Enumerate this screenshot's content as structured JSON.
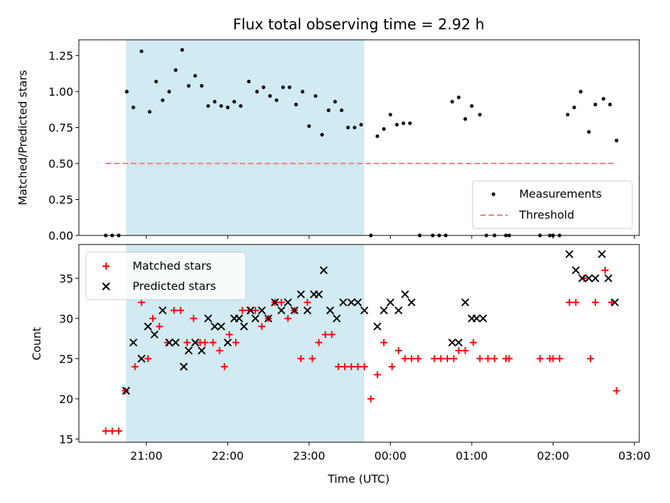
{
  "chart_data": [
    {
      "type": "scatter",
      "panel": "top",
      "title": "Flux total observing time = 2.92 h",
      "xlabel": "",
      "ylabel": "Matched/Predicted stars",
      "ylim": [
        0,
        1.36
      ],
      "yticks": [
        0.0,
        0.25,
        0.5,
        0.75,
        1.0,
        1.25
      ],
      "ytick_labels": [
        "0.00",
        "0.25",
        "0.50",
        "0.75",
        "1.00",
        "1.25"
      ],
      "x_range_hours": [
        20.17,
        27.06
      ],
      "shaded_span_hours": [
        20.75,
        23.68
      ],
      "shaded_color": "#add8e6",
      "legend_position": "lower right",
      "series": [
        {
          "name": "Measurements",
          "marker": "dot",
          "color": "#000000",
          "x": [
            20.5,
            20.58,
            20.66,
            20.76,
            20.84,
            20.94,
            21.04,
            21.12,
            21.2,
            21.28,
            21.36,
            21.44,
            21.52,
            21.6,
            21.68,
            21.76,
            21.84,
            21.92,
            22.0,
            22.08,
            22.16,
            22.26,
            22.36,
            22.44,
            22.52,
            22.6,
            22.68,
            22.76,
            22.84,
            22.92,
            23.0,
            23.08,
            23.16,
            23.24,
            23.32,
            23.4,
            23.48,
            23.56,
            23.64,
            23.76,
            23.84,
            23.92,
            24.0,
            24.08,
            24.16,
            24.24,
            24.36,
            24.52,
            24.6,
            24.68,
            24.76,
            24.84,
            24.92,
            25.0,
            25.1,
            25.18,
            25.28,
            25.42,
            25.46,
            25.84,
            25.96,
            26.0,
            26.08,
            26.18,
            26.26,
            26.34,
            26.44,
            26.52,
            26.62,
            26.7,
            26.78
          ],
          "y": [
            0.0,
            0.0,
            0.0,
            1.0,
            0.89,
            1.28,
            0.86,
            1.07,
            0.94,
            1.0,
            1.15,
            1.29,
            1.04,
            1.11,
            1.04,
            0.9,
            0.93,
            0.9,
            0.89,
            0.93,
            0.9,
            1.07,
            1.0,
            1.03,
            0.97,
            0.94,
            1.03,
            1.03,
            0.91,
            1.0,
            0.76,
            0.97,
            0.7,
            0.87,
            0.93,
            0.87,
            0.75,
            0.75,
            0.77,
            0.0,
            0.69,
            0.74,
            0.84,
            0.77,
            0.78,
            0.78,
            0.0,
            0.0,
            0.0,
            0.0,
            0.93,
            0.96,
            0.81,
            0.9,
            0.84,
            0.0,
            0.0,
            0.0,
            0.0,
            0.0,
            0.0,
            0.0,
            0.0,
            0.84,
            0.89,
            1.0,
            0.72,
            0.91,
            0.95,
            0.91,
            0.66
          ]
        },
        {
          "name": "Threshold",
          "marker": "dashed-line",
          "color": "#f08080",
          "x": [
            20.5,
            26.78
          ],
          "y": [
            0.5,
            0.5
          ]
        }
      ]
    },
    {
      "type": "scatter",
      "panel": "bottom",
      "title": "",
      "xlabel": "Time (UTC)",
      "ylabel": "Count",
      "ylim": [
        14.6,
        39.2
      ],
      "yticks": [
        15,
        20,
        25,
        30,
        35
      ],
      "ytick_labels": [
        "15",
        "20",
        "25",
        "30",
        "35"
      ],
      "x_range_hours": [
        20.17,
        27.06
      ],
      "xticks_hours": [
        21,
        22,
        23,
        24,
        25,
        26,
        27
      ],
      "xtick_labels": [
        "21:00",
        "22:00",
        "23:00",
        "00:00",
        "01:00",
        "02:00",
        "03:00"
      ],
      "shaded_span_hours": [
        20.75,
        23.68
      ],
      "shaded_color": "#add8e6",
      "legend_position": "upper left",
      "series": [
        {
          "name": "Matched stars",
          "marker": "plus",
          "color": "#ff0000",
          "x": [
            20.5,
            20.58,
            20.66,
            20.74,
            20.86,
            20.94,
            21.02,
            21.08,
            21.16,
            21.26,
            21.34,
            21.42,
            21.5,
            21.58,
            21.66,
            21.72,
            21.82,
            21.9,
            21.96,
            22.02,
            22.1,
            22.18,
            22.26,
            22.34,
            22.42,
            22.5,
            22.58,
            22.66,
            22.74,
            22.82,
            22.9,
            22.98,
            23.04,
            23.12,
            23.2,
            23.28,
            23.36,
            23.44,
            23.52,
            23.6,
            23.68,
            23.76,
            23.84,
            23.92,
            24.02,
            24.1,
            24.18,
            24.26,
            24.34,
            24.54,
            24.62,
            24.7,
            24.78,
            24.84,
            24.92,
            25.02,
            25.1,
            25.2,
            25.28,
            25.42,
            25.46,
            25.84,
            25.96,
            26.0,
            26.08,
            26.2,
            26.28,
            26.38,
            26.46,
            26.52,
            26.64,
            26.72,
            26.78
          ],
          "y": [
            16,
            16,
            16,
            21,
            24,
            32,
            25,
            30,
            29,
            27,
            31,
            31,
            27,
            30,
            27,
            27,
            27,
            26,
            24,
            28,
            27,
            31,
            31,
            31,
            29,
            30,
            32,
            32,
            30,
            31,
            25,
            32,
            25,
            27,
            28,
            28,
            24,
            24,
            24,
            24,
            24,
            20,
            23,
            27,
            24,
            26,
            25,
            25,
            25,
            25,
            25,
            25,
            25,
            26,
            26,
            27,
            25,
            25,
            25,
            25,
            25,
            25,
            25,
            25,
            25,
            32,
            32,
            35,
            25,
            32,
            36,
            32,
            21
          ]
        },
        {
          "name": "Predicted stars",
          "marker": "x",
          "color": "#000000",
          "x": [
            20.75,
            20.84,
            20.94,
            21.02,
            21.1,
            21.2,
            21.28,
            21.36,
            21.46,
            21.52,
            21.6,
            21.68,
            21.76,
            21.84,
            21.92,
            22.0,
            22.08,
            22.14,
            22.2,
            22.28,
            22.34,
            22.42,
            22.5,
            22.58,
            22.66,
            22.74,
            22.82,
            22.9,
            22.98,
            23.06,
            23.12,
            23.18,
            23.26,
            23.34,
            23.42,
            23.52,
            23.6,
            23.68,
            23.84,
            23.92,
            24.0,
            24.1,
            24.18,
            24.26,
            24.76,
            24.84,
            24.92,
            25.0,
            25.06,
            25.14,
            26.2,
            26.28,
            26.36,
            26.44,
            26.52,
            26.6,
            26.68,
            26.76
          ],
          "y": [
            21,
            27,
            25,
            29,
            28,
            31,
            27,
            27,
            24,
            26,
            27,
            26,
            30,
            29,
            29,
            27,
            30,
            30,
            29,
            31,
            30,
            31,
            30,
            32,
            31,
            32,
            31,
            33,
            31,
            33,
            33,
            36,
            31,
            30,
            32,
            32,
            32,
            31,
            29,
            31,
            32,
            31,
            33,
            32,
            27,
            27,
            32,
            30,
            30,
            30,
            38,
            36,
            35,
            35,
            35,
            38,
            35,
            32
          ]
        }
      ]
    }
  ]
}
